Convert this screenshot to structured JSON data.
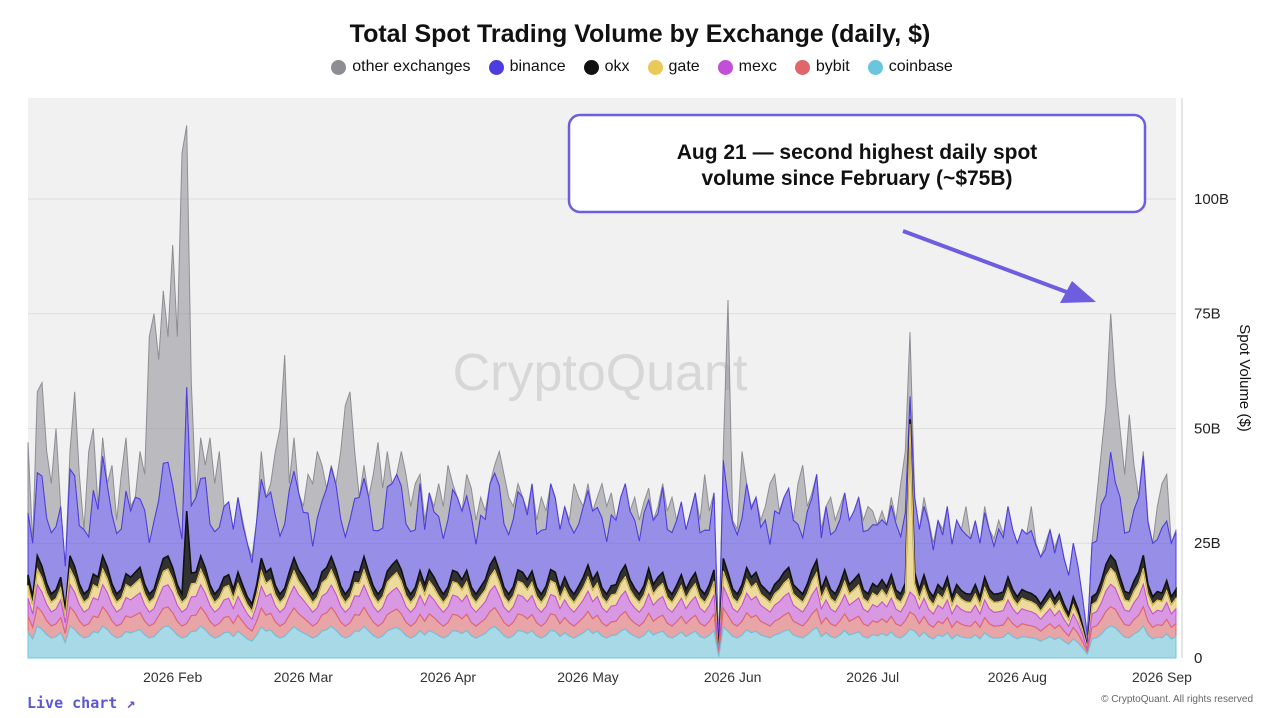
{
  "header": {
    "title": "Total Spot Trading Volume by Exchange (daily, $)"
  },
  "footer": {
    "live_chart": "Live chart ↗",
    "copyright": "© CryptoQuant. All rights reserved"
  },
  "watermark": "CryptoQuant",
  "colors": {
    "plot_bg": "#f1f1f1",
    "callout_border": "#6d5ee0",
    "arrow": "#6d5ee0"
  },
  "annotation": {
    "lines": [
      "Aug 21 — second highest daily spot",
      "volume since February (~$75B)"
    ]
  },
  "chart_data": {
    "type": "area",
    "stacked": true,
    "ylabel": "Spot Volume ($)",
    "xlabel": "",
    "x_start": "2026-01-01",
    "x_end": "2026-09-04",
    "ylim": [
      0,
      122
    ],
    "y_unit": "B",
    "y_ticks": [
      {
        "value": 0,
        "label": "0"
      },
      {
        "value": 25,
        "label": "25B"
      },
      {
        "value": 50,
        "label": "50B"
      },
      {
        "value": 75,
        "label": "75B"
      },
      {
        "value": 100,
        "label": "100B"
      }
    ],
    "x_ticks": [
      {
        "date": "2026-02-01",
        "label": "2026 Feb"
      },
      {
        "date": "2026-03-01",
        "label": "2026 Mar"
      },
      {
        "date": "2026-04-01",
        "label": "2026 Apr"
      },
      {
        "date": "2026-05-01",
        "label": "2026 May"
      },
      {
        "date": "2026-06-01",
        "label": "2026 Jun"
      },
      {
        "date": "2026-07-01",
        "label": "2026 Jul"
      },
      {
        "date": "2026-08-01",
        "label": "2026 Aug"
      },
      {
        "date": "2026-09-01",
        "label": "2026 Sep"
      }
    ],
    "legend_position": "top-center",
    "series_order_bottom_to_top": [
      "coinbase",
      "bybit",
      "mexc",
      "gate",
      "okx",
      "binance",
      "other exchanges"
    ],
    "series": [
      {
        "name": "other exchanges",
        "color": "#8e8d94"
      },
      {
        "name": "binance",
        "color": "#4d3de0"
      },
      {
        "name": "okx",
        "color": "#111111"
      },
      {
        "name": "gate",
        "color": "#e9c95a"
      },
      {
        "name": "mexc",
        "color": "#c34fd6"
      },
      {
        "name": "bybit",
        "color": "#e0666a"
      },
      {
        "name": "coinbase",
        "color": "#6cc5df"
      }
    ],
    "total_keypoints": [
      [
        "2026-01-01",
        47
      ],
      [
        "2026-01-02",
        25
      ],
      [
        "2026-01-03",
        58
      ],
      [
        "2026-01-04",
        60
      ],
      [
        "2026-01-05",
        45
      ],
      [
        "2026-01-06",
        38
      ],
      [
        "2026-01-07",
        50
      ],
      [
        "2026-01-08",
        33
      ],
      [
        "2026-01-09",
        20
      ],
      [
        "2026-01-10",
        45
      ],
      [
        "2026-01-11",
        58
      ],
      [
        "2026-01-12",
        40
      ],
      [
        "2026-01-13",
        28
      ],
      [
        "2026-01-14",
        45
      ],
      [
        "2026-01-15",
        50
      ],
      [
        "2026-01-16",
        33
      ],
      [
        "2026-01-17",
        48
      ],
      [
        "2026-01-18",
        38
      ],
      [
        "2026-01-19",
        42
      ],
      [
        "2026-01-20",
        30
      ],
      [
        "2026-01-21",
        40
      ],
      [
        "2026-01-22",
        48
      ],
      [
        "2026-01-23",
        33
      ],
      [
        "2026-01-24",
        35
      ],
      [
        "2026-01-25",
        45
      ],
      [
        "2026-01-26",
        40
      ],
      [
        "2026-01-27",
        70
      ],
      [
        "2026-01-28",
        75
      ],
      [
        "2026-01-29",
        65
      ],
      [
        "2026-01-30",
        80
      ],
      [
        "2026-01-31",
        70
      ],
      [
        "2026-02-01",
        90
      ],
      [
        "2026-02-02",
        70
      ],
      [
        "2026-02-03",
        110
      ],
      [
        "2026-02-04",
        116
      ],
      [
        "2026-02-05",
        60
      ],
      [
        "2026-02-06",
        35
      ],
      [
        "2026-02-07",
        48
      ],
      [
        "2026-02-08",
        42
      ],
      [
        "2026-02-09",
        48
      ],
      [
        "2026-02-10",
        38
      ],
      [
        "2026-02-11",
        45
      ],
      [
        "2026-02-12",
        33
      ],
      [
        "2026-02-13",
        34
      ],
      [
        "2026-02-14",
        28
      ],
      [
        "2026-02-15",
        35
      ],
      [
        "2026-02-16",
        30
      ],
      [
        "2026-02-17",
        25
      ],
      [
        "2026-02-18",
        22
      ],
      [
        "2026-02-19",
        30
      ],
      [
        "2026-02-20",
        45
      ],
      [
        "2026-02-21",
        35
      ],
      [
        "2026-02-22",
        38
      ],
      [
        "2026-02-23",
        45
      ],
      [
        "2026-02-24",
        50
      ],
      [
        "2026-02-25",
        66
      ],
      [
        "2026-02-26",
        38
      ],
      [
        "2026-02-27",
        48
      ],
      [
        "2026-02-28",
        36
      ],
      [
        "2026-03-01",
        33
      ],
      [
        "2026-03-02",
        40
      ],
      [
        "2026-03-03",
        38
      ],
      [
        "2026-03-04",
        45
      ],
      [
        "2026-03-05",
        42
      ],
      [
        "2026-03-06",
        37
      ],
      [
        "2026-03-07",
        42
      ],
      [
        "2026-03-08",
        38
      ],
      [
        "2026-03-09",
        45
      ],
      [
        "2026-03-10",
        55
      ],
      [
        "2026-03-11",
        58
      ],
      [
        "2026-03-12",
        45
      ],
      [
        "2026-03-13",
        35
      ],
      [
        "2026-03-14",
        42
      ],
      [
        "2026-03-15",
        35
      ],
      [
        "2026-03-16",
        40
      ],
      [
        "2026-03-17",
        47
      ],
      [
        "2026-03-18",
        37
      ],
      [
        "2026-03-19",
        45
      ],
      [
        "2026-03-20",
        38
      ],
      [
        "2026-03-21",
        40
      ],
      [
        "2026-03-22",
        45
      ],
      [
        "2026-03-23",
        40
      ],
      [
        "2026-03-24",
        33
      ],
      [
        "2026-03-25",
        38
      ],
      [
        "2026-03-26",
        40
      ],
      [
        "2026-03-27",
        30
      ],
      [
        "2026-03-28",
        36
      ],
      [
        "2026-03-29",
        33
      ],
      [
        "2026-03-30",
        38
      ],
      [
        "2026-03-31",
        33
      ],
      [
        "2026-04-01",
        42
      ],
      [
        "2026-04-02",
        38
      ],
      [
        "2026-04-03",
        35
      ],
      [
        "2026-04-04",
        32
      ],
      [
        "2026-04-05",
        40
      ],
      [
        "2026-04-06",
        37
      ],
      [
        "2026-04-07",
        30
      ],
      [
        "2026-04-08",
        35
      ],
      [
        "2026-04-09",
        32
      ],
      [
        "2026-04-10",
        38
      ],
      [
        "2026-04-11",
        42
      ],
      [
        "2026-04-12",
        45
      ],
      [
        "2026-04-13",
        40
      ],
      [
        "2026-04-14",
        35
      ],
      [
        "2026-04-15",
        33
      ],
      [
        "2026-04-16",
        38
      ],
      [
        "2026-04-17",
        35
      ],
      [
        "2026-04-18",
        32
      ],
      [
        "2026-04-19",
        38
      ],
      [
        "2026-04-20",
        30
      ],
      [
        "2026-04-21",
        35
      ],
      [
        "2026-04-22",
        32
      ],
      [
        "2026-04-23",
        38
      ],
      [
        "2026-04-24",
        35
      ],
      [
        "2026-04-25",
        28
      ],
      [
        "2026-04-26",
        33
      ],
      [
        "2026-04-27",
        30
      ],
      [
        "2026-04-28",
        38
      ],
      [
        "2026-04-29",
        35
      ],
      [
        "2026-04-30",
        33
      ],
      [
        "2026-05-01",
        38
      ],
      [
        "2026-05-02",
        32
      ],
      [
        "2026-05-03",
        35
      ],
      [
        "2026-05-04",
        38
      ],
      [
        "2026-05-05",
        33
      ],
      [
        "2026-05-06",
        36
      ],
      [
        "2026-05-07",
        30
      ],
      [
        "2026-05-08",
        35
      ],
      [
        "2026-05-09",
        38
      ],
      [
        "2026-05-10",
        32
      ],
      [
        "2026-05-11",
        35
      ],
      [
        "2026-05-12",
        30
      ],
      [
        "2026-05-13",
        34
      ],
      [
        "2026-05-14",
        37
      ],
      [
        "2026-05-15",
        30
      ],
      [
        "2026-05-16",
        33
      ],
      [
        "2026-05-17",
        38
      ],
      [
        "2026-05-18",
        32
      ],
      [
        "2026-05-19",
        35
      ],
      [
        "2026-05-20",
        30
      ],
      [
        "2026-05-21",
        34
      ],
      [
        "2026-05-22",
        28
      ],
      [
        "2026-05-23",
        32
      ],
      [
        "2026-05-24",
        36
      ],
      [
        "2026-05-25",
        30
      ],
      [
        "2026-05-26",
        40
      ],
      [
        "2026-05-27",
        32
      ],
      [
        "2026-05-28",
        36
      ],
      [
        "2026-05-29",
        2
      ],
      [
        "2026-05-30",
        45
      ],
      [
        "2026-05-31",
        78
      ],
      [
        "2026-06-01",
        30
      ],
      [
        "2026-06-02",
        28
      ],
      [
        "2026-06-03",
        45
      ],
      [
        "2026-06-04",
        38
      ],
      [
        "2026-06-05",
        33
      ],
      [
        "2026-06-06",
        35
      ],
      [
        "2026-06-07",
        30
      ],
      [
        "2026-06-08",
        33
      ],
      [
        "2026-06-09",
        38
      ],
      [
        "2026-06-10",
        40
      ],
      [
        "2026-06-11",
        32
      ],
      [
        "2026-06-12",
        35
      ],
      [
        "2026-06-13",
        37
      ],
      [
        "2026-06-14",
        30
      ],
      [
        "2026-06-15",
        38
      ],
      [
        "2026-06-16",
        42
      ],
      [
        "2026-06-17",
        33
      ],
      [
        "2026-06-18",
        36
      ],
      [
        "2026-06-19",
        40
      ],
      [
        "2026-06-20",
        28
      ],
      [
        "2026-06-21",
        33
      ],
      [
        "2026-06-22",
        35
      ],
      [
        "2026-06-23",
        30
      ],
      [
        "2026-06-24",
        33
      ],
      [
        "2026-06-25",
        36
      ],
      [
        "2026-06-26",
        30
      ],
      [
        "2026-06-27",
        32
      ],
      [
        "2026-06-28",
        35
      ],
      [
        "2026-06-29",
        30
      ],
      [
        "2026-06-30",
        33
      ],
      [
        "2026-07-01",
        32
      ],
      [
        "2026-07-02",
        29
      ],
      [
        "2026-07-03",
        32
      ],
      [
        "2026-07-04",
        29
      ],
      [
        "2026-07-05",
        35
      ],
      [
        "2026-07-06",
        30
      ],
      [
        "2026-07-07",
        38
      ],
      [
        "2026-07-08",
        45
      ],
      [
        "2026-07-09",
        71
      ],
      [
        "2026-07-10",
        35
      ],
      [
        "2026-07-11",
        28
      ],
      [
        "2026-07-12",
        35
      ],
      [
        "2026-07-13",
        30
      ],
      [
        "2026-07-14",
        25
      ],
      [
        "2026-07-15",
        30
      ],
      [
        "2026-07-16",
        28
      ],
      [
        "2026-07-17",
        33
      ],
      [
        "2026-07-18",
        25
      ],
      [
        "2026-07-19",
        30
      ],
      [
        "2026-07-20",
        28
      ],
      [
        "2026-07-21",
        33
      ],
      [
        "2026-07-22",
        26
      ],
      [
        "2026-07-23",
        30
      ],
      [
        "2026-07-24",
        25
      ],
      [
        "2026-07-25",
        33
      ],
      [
        "2026-07-26",
        28
      ],
      [
        "2026-07-27",
        26
      ],
      [
        "2026-07-28",
        30
      ],
      [
        "2026-07-29",
        27
      ],
      [
        "2026-07-30",
        33
      ],
      [
        "2026-07-31",
        28
      ],
      [
        "2026-08-01",
        25
      ],
      [
        "2026-08-02",
        28
      ],
      [
        "2026-08-03",
        27
      ],
      [
        "2026-08-04",
        33
      ],
      [
        "2026-08-05",
        25
      ],
      [
        "2026-08-06",
        22
      ],
      [
        "2026-08-07",
        25
      ],
      [
        "2026-08-08",
        28
      ],
      [
        "2026-08-09",
        24
      ],
      [
        "2026-08-10",
        27
      ],
      [
        "2026-08-11",
        22
      ],
      [
        "2026-08-12",
        18
      ],
      [
        "2026-08-13",
        25
      ],
      [
        "2026-08-14",
        20
      ],
      [
        "2026-08-15",
        13
      ],
      [
        "2026-08-16",
        5
      ],
      [
        "2026-08-17",
        25
      ],
      [
        "2026-08-18",
        35
      ],
      [
        "2026-08-19",
        45
      ],
      [
        "2026-08-20",
        55
      ],
      [
        "2026-08-21",
        75
      ],
      [
        "2026-08-22",
        60
      ],
      [
        "2026-08-23",
        50
      ],
      [
        "2026-08-24",
        40
      ],
      [
        "2026-08-25",
        53
      ],
      [
        "2026-08-26",
        42
      ],
      [
        "2026-08-27",
        35
      ],
      [
        "2026-08-28",
        45
      ],
      [
        "2026-08-29",
        30
      ],
      [
        "2026-08-30",
        25
      ],
      [
        "2026-08-31",
        33
      ],
      [
        "2026-09-01",
        38
      ],
      [
        "2026-09-02",
        40
      ],
      [
        "2026-09-03",
        25
      ],
      [
        "2026-09-04",
        28
      ]
    ],
    "composition_typical": {
      "coinbase": 0.1,
      "bybit": 0.06,
      "mexc": 0.07,
      "gate": 0.05,
      "okx": 0.04,
      "binance": 0.28,
      "other exchanges": 0.4
    },
    "notable_events": [
      {
        "date": "2026-02-04",
        "total": 116,
        "binance_top": 59,
        "okx_top": 32
      },
      {
        "date": "2026-05-31",
        "total": 78
      },
      {
        "date": "2026-07-09",
        "total": 71,
        "binance_top": 57,
        "gate_top": 51
      },
      {
        "date": "2026-08-21",
        "total": 75
      }
    ]
  }
}
